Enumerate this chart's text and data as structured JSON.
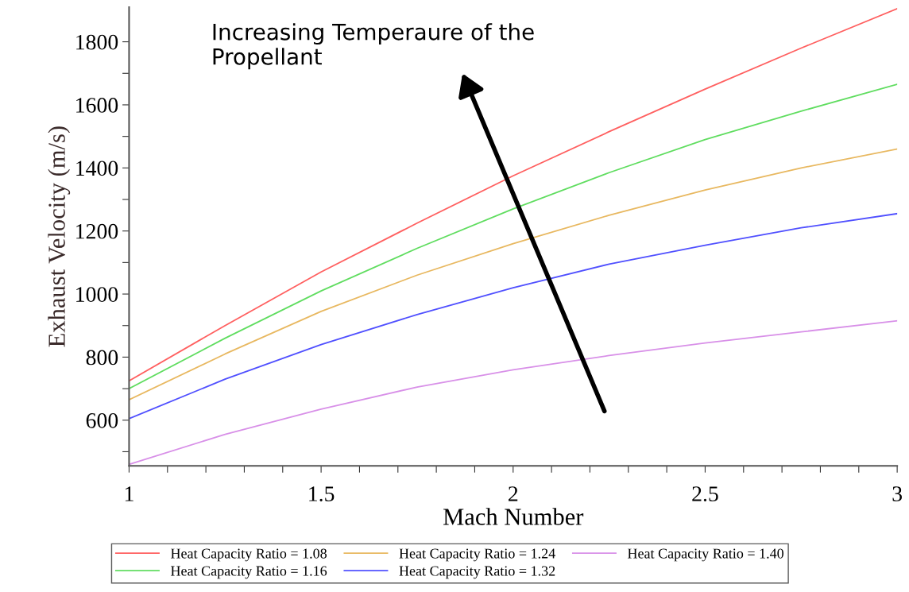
{
  "chart_data": {
    "type": "line",
    "xlabel": "Mach Number",
    "ylabel": "Exhaust Velocity (m/s)",
    "x": [
      1,
      1.25,
      1.5,
      1.75,
      2,
      2.25,
      2.5,
      2.75,
      3
    ],
    "series": [
      {
        "name": "Heat Capacity Ratio = 1.08",
        "color": "#ff6060",
        "values": [
          725,
          900,
          1070,
          1225,
          1375,
          1515,
          1650,
          1780,
          1905
        ]
      },
      {
        "name": "Heat Capacity Ratio = 1.16",
        "color": "#60dd60",
        "values": [
          700,
          860,
          1010,
          1145,
          1270,
          1385,
          1490,
          1580,
          1665
        ]
      },
      {
        "name": "Heat Capacity Ratio = 1.24",
        "color": "#e8b860",
        "values": [
          665,
          810,
          945,
          1060,
          1160,
          1250,
          1330,
          1400,
          1460
        ]
      },
      {
        "name": "Heat Capacity Ratio = 1.32",
        "color": "#5050ff",
        "values": [
          605,
          730,
          840,
          935,
          1020,
          1095,
          1155,
          1210,
          1255
        ]
      },
      {
        "name": "Heat Capacity Ratio = 1.40",
        "color": "#d890e8",
        "values": [
          460,
          555,
          635,
          705,
          760,
          805,
          845,
          880,
          915
        ]
      }
    ],
    "xlim": [
      1,
      3
    ],
    "ylim": [
      455,
      1910
    ],
    "xticks": [
      1,
      {
        "value": 1.1,
        "label": null
      },
      {
        "value": 1.2,
        "label": null
      },
      {
        "value": 1.3,
        "label": null
      },
      {
        "value": 1.4,
        "label": null
      },
      1.5,
      {
        "value": 1.6,
        "label": null
      },
      {
        "value": 1.7,
        "label": null
      },
      {
        "value": 1.8,
        "label": null
      },
      {
        "value": 1.9,
        "label": null
      },
      2,
      {
        "value": 2.1,
        "label": null
      },
      {
        "value": 2.2,
        "label": null
      },
      {
        "value": 2.3,
        "label": null
      },
      {
        "value": 2.4,
        "label": null
      },
      2.5,
      {
        "value": 2.6,
        "label": null
      },
      {
        "value": 2.7,
        "label": null
      },
      {
        "value": 2.8,
        "label": null
      },
      {
        "value": 2.9,
        "label": null
      },
      3
    ],
    "yticks": [
      {
        "value": 500,
        "label": null
      },
      600,
      {
        "value": 700,
        "label": null
      },
      800,
      {
        "value": 900,
        "label": null
      },
      1000,
      {
        "value": 1100,
        "label": null
      },
      1200,
      {
        "value": 1300,
        "label": null
      },
      1400,
      {
        "value": 1500,
        "label": null
      },
      1600,
      {
        "value": 1700,
        "label": null
      },
      1800
    ],
    "annotations": [
      "Increasing Temperaure of the\nPropellant"
    ],
    "grid": false,
    "legend": "bottom",
    "marker": "none",
    "line_style": "solid"
  }
}
